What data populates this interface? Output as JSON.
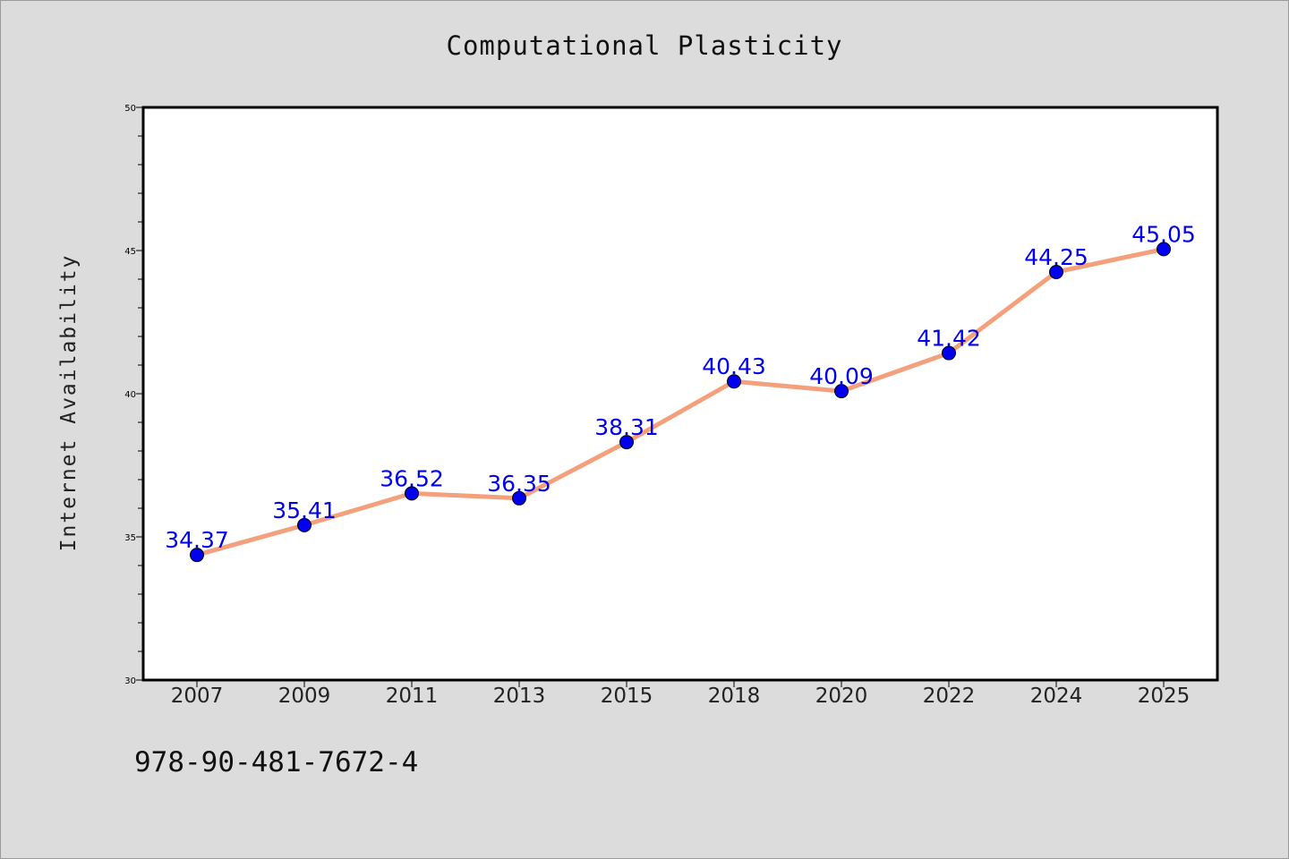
{
  "chart_data": {
    "type": "line",
    "title": "Computational Plasticity",
    "xlabel": "",
    "ylabel": "Internet Availability",
    "categories": [
      "2007",
      "2009",
      "2011",
      "2013",
      "2015",
      "2018",
      "2020",
      "2022",
      "2024",
      "2025"
    ],
    "series": [
      {
        "values": [
          34.37,
          35.41,
          36.52,
          36.35,
          38.31,
          40.43,
          40.09,
          41.42,
          44.25,
          45.05
        ]
      }
    ],
    "data_labels": [
      "34.37",
      "35.41",
      "36.52",
      "36.35",
      "38.31",
      "40.43",
      "40.09",
      "41.42",
      "44.25",
      "45.05"
    ],
    "ylim": [
      30,
      50
    ],
    "y_ticks": [
      "30",
      "35",
      "40",
      "45",
      "50"
    ],
    "grid": false,
    "line_color": "#f4a07c",
    "marker_color": "#0000ee",
    "label_color": "#0000ee"
  },
  "footer": {
    "isbn": "978-90-481-7672-4"
  }
}
